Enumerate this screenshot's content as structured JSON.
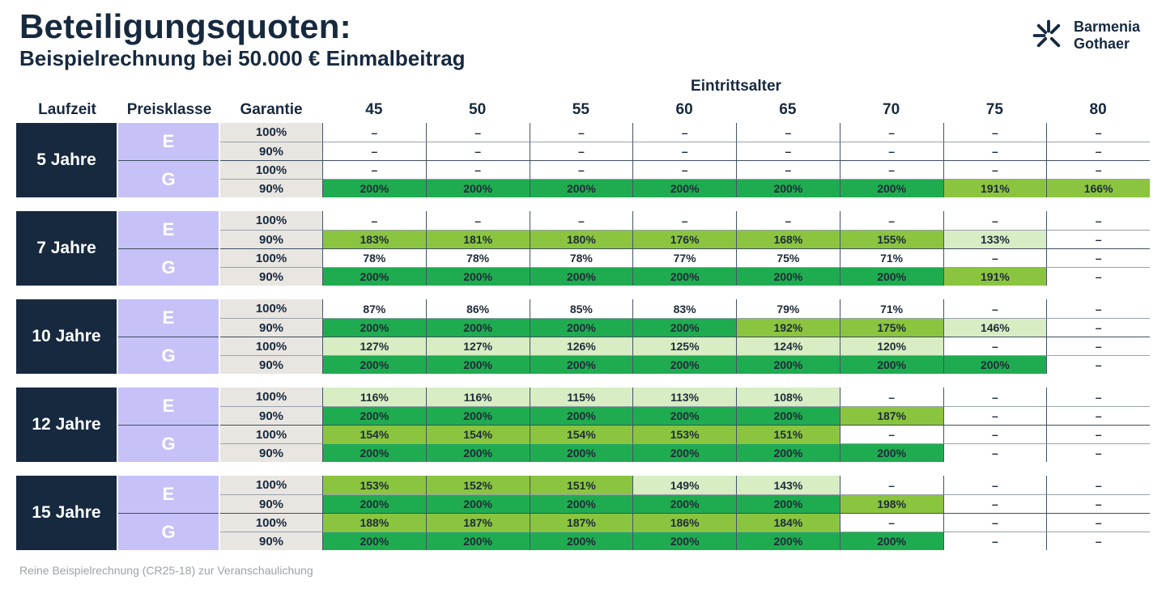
{
  "header": {
    "title": "Beteiligungsquoten:",
    "subtitle": "Beispielrechnung bei 50.000 € Einmalbeitrag",
    "logo": {
      "line1": "Barmenia",
      "line2": "Gothaer"
    }
  },
  "table": {
    "group_header": "Eintrittsalter",
    "column_headers": {
      "laufzeit": "Laufzeit",
      "preisklasse": "Preisklasse",
      "garantie": "Garantie"
    },
    "ages": [
      "45",
      "50",
      "55",
      "60",
      "65",
      "70",
      "75",
      "80"
    ],
    "color_rules": {
      "dark_min": 200,
      "mid_min": 150,
      "light_min": 100
    },
    "blocks": [
      {
        "laufzeit": "5 Jahre",
        "rows": [
          {
            "preisklasse": "E",
            "garantie": "100%",
            "values": [
              "–",
              "–",
              "–",
              "–",
              "–",
              "–",
              "–",
              "–"
            ]
          },
          {
            "preisklasse": "E",
            "garantie": "90%",
            "values": [
              "–",
              "–",
              "–",
              "–",
              "–",
              "–",
              "–",
              "–"
            ]
          },
          {
            "preisklasse": "G",
            "garantie": "100%",
            "values": [
              "–",
              "–",
              "–",
              "–",
              "–",
              "–",
              "–",
              "–"
            ]
          },
          {
            "preisklasse": "G",
            "garantie": "90%",
            "values": [
              "200%",
              "200%",
              "200%",
              "200%",
              "200%",
              "200%",
              "191%",
              "166%"
            ]
          }
        ]
      },
      {
        "laufzeit": "7 Jahre",
        "rows": [
          {
            "preisklasse": "E",
            "garantie": "100%",
            "values": [
              "–",
              "–",
              "–",
              "–",
              "–",
              "–",
              "–",
              "–"
            ]
          },
          {
            "preisklasse": "E",
            "garantie": "90%",
            "values": [
              "183%",
              "181%",
              "180%",
              "176%",
              "168%",
              "155%",
              "133%",
              "–"
            ]
          },
          {
            "preisklasse": "G",
            "garantie": "100%",
            "values": [
              "78%",
              "78%",
              "78%",
              "77%",
              "75%",
              "71%",
              "–",
              "–"
            ]
          },
          {
            "preisklasse": "G",
            "garantie": "90%",
            "values": [
              "200%",
              "200%",
              "200%",
              "200%",
              "200%",
              "200%",
              "191%",
              "–"
            ]
          }
        ]
      },
      {
        "laufzeit": "10 Jahre",
        "rows": [
          {
            "preisklasse": "E",
            "garantie": "100%",
            "values": [
              "87%",
              "86%",
              "85%",
              "83%",
              "79%",
              "71%",
              "–",
              "–"
            ]
          },
          {
            "preisklasse": "E",
            "garantie": "90%",
            "values": [
              "200%",
              "200%",
              "200%",
              "200%",
              "192%",
              "175%",
              "146%",
              "–"
            ]
          },
          {
            "preisklasse": "G",
            "garantie": "100%",
            "values": [
              "127%",
              "127%",
              "126%",
              "125%",
              "124%",
              "120%",
              "–",
              "–"
            ]
          },
          {
            "preisklasse": "G",
            "garantie": "90%",
            "values": [
              "200%",
              "200%",
              "200%",
              "200%",
              "200%",
              "200%",
              "200%",
              "–"
            ]
          }
        ]
      },
      {
        "laufzeit": "12 Jahre",
        "rows": [
          {
            "preisklasse": "E",
            "garantie": "100%",
            "values": [
              "116%",
              "116%",
              "115%",
              "113%",
              "108%",
              "–",
              "–",
              "–"
            ]
          },
          {
            "preisklasse": "E",
            "garantie": "90%",
            "values": [
              "200%",
              "200%",
              "200%",
              "200%",
              "200%",
              "187%",
              "–",
              "–"
            ]
          },
          {
            "preisklasse": "G",
            "garantie": "100%",
            "values": [
              "154%",
              "154%",
              "154%",
              "153%",
              "151%",
              "–",
              "–",
              "–"
            ]
          },
          {
            "preisklasse": "G",
            "garantie": "90%",
            "values": [
              "200%",
              "200%",
              "200%",
              "200%",
              "200%",
              "200%",
              "–",
              "–"
            ]
          }
        ]
      },
      {
        "laufzeit": "15 Jahre",
        "rows": [
          {
            "preisklasse": "E",
            "garantie": "100%",
            "values": [
              "153%",
              "152%",
              "151%",
              "149%",
              "143%",
              "–",
              "–",
              "–"
            ]
          },
          {
            "preisklasse": "E",
            "garantie": "90%",
            "values": [
              "200%",
              "200%",
              "200%",
              "200%",
              "200%",
              "198%",
              "–",
              "–"
            ]
          },
          {
            "preisklasse": "G",
            "garantie": "100%",
            "values": [
              "188%",
              "187%",
              "187%",
              "186%",
              "184%",
              "–",
              "–",
              "–"
            ]
          },
          {
            "preisklasse": "G",
            "garantie": "90%",
            "values": [
              "200%",
              "200%",
              "200%",
              "200%",
              "200%",
              "200%",
              "–",
              "–"
            ]
          }
        ]
      }
    ]
  },
  "footer": {
    "note": "Reine Beispielrechnung (CR25-18) zur Veranschaulichung"
  },
  "colors": {
    "navy": "#16293F",
    "lavender": "#C6C2F7",
    "gray": "#E9E6E1",
    "green_dark": "#1FAC50",
    "green_mid": "#8BC53F",
    "green_light": "#D9EDC4"
  }
}
